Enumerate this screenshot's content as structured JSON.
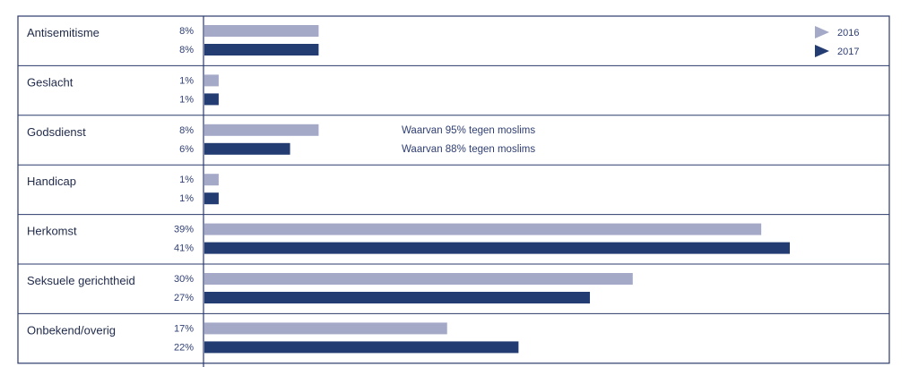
{
  "chart_data": {
    "type": "bar",
    "orientation": "horizontal",
    "categories": [
      "Antisemitisme",
      "Geslacht",
      "Godsdienst",
      "Handicap",
      "Herkomst",
      "Seksuele gerichtheid",
      "Onbekend/overig"
    ],
    "series": [
      {
        "name": "2016",
        "values": [
          8,
          1,
          8,
          1,
          39,
          30,
          17
        ],
        "labels": [
          "8%",
          "1%",
          "8%",
          "1%",
          "39%",
          "30%",
          "17%"
        ],
        "color": "#a4a9c8"
      },
      {
        "name": "2017",
        "values": [
          8,
          1,
          6,
          1,
          41,
          27,
          22
        ],
        "labels": [
          "8%",
          "1%",
          "6%",
          "1%",
          "41%",
          "27%",
          "22%"
        ],
        "color": "#233d73"
      }
    ],
    "annotations": [
      {
        "category": "Godsdienst",
        "series": "2016",
        "text": "Waarvan 95% tegen moslims"
      },
      {
        "category": "Godsdienst",
        "series": "2017",
        "text": "Waarvan 88% tegen moslims"
      }
    ],
    "xlim": [
      0,
      45
    ],
    "legend_position": "top-right",
    "grid": false
  }
}
